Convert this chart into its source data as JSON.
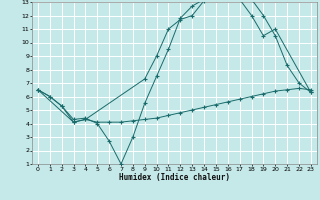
{
  "xlabel": "Humidex (Indice chaleur)",
  "xlim": [
    -0.5,
    23.5
  ],
  "ylim": [
    1,
    13
  ],
  "xticks": [
    0,
    1,
    2,
    3,
    4,
    5,
    6,
    7,
    8,
    9,
    10,
    11,
    12,
    13,
    14,
    15,
    16,
    17,
    18,
    19,
    20,
    21,
    22,
    23
  ],
  "yticks": [
    1,
    2,
    3,
    4,
    5,
    6,
    7,
    8,
    9,
    10,
    11,
    12,
    13
  ],
  "bg_color": "#c5e8e8",
  "grid_color": "#ffffff",
  "line_color": "#1a6b6b",
  "line1_x": [
    0,
    1,
    2,
    3,
    4,
    5,
    6,
    7,
    8,
    9,
    10,
    11,
    12,
    13,
    14,
    15,
    16,
    17,
    18,
    19,
    20,
    21,
    22,
    23
  ],
  "line1_y": [
    6.5,
    6.0,
    5.3,
    4.3,
    4.4,
    4.0,
    2.7,
    1.0,
    3.0,
    5.5,
    7.5,
    9.5,
    11.8,
    12.7,
    13.2,
    13.3,
    13.3,
    13.2,
    13.2,
    12.0,
    10.5,
    8.3,
    7.0,
    6.3
  ],
  "line2_x": [
    0,
    1,
    2,
    3,
    4,
    5,
    6,
    7,
    8,
    9,
    10,
    11,
    12,
    13,
    14,
    15,
    16,
    17,
    18,
    19,
    20,
    21,
    22,
    23
  ],
  "line2_y": [
    6.5,
    6.0,
    5.3,
    4.1,
    4.3,
    4.1,
    4.1,
    4.1,
    4.2,
    4.3,
    4.4,
    4.6,
    4.8,
    5.0,
    5.2,
    5.4,
    5.6,
    5.8,
    6.0,
    6.2,
    6.4,
    6.5,
    6.6,
    6.5
  ],
  "line3_x": [
    0,
    3,
    4,
    9,
    10,
    11,
    12,
    13,
    14,
    15,
    16,
    17,
    18,
    19,
    20,
    23
  ],
  "line3_y": [
    6.5,
    4.1,
    4.3,
    7.3,
    9.0,
    11.0,
    11.7,
    12.0,
    13.1,
    13.3,
    13.3,
    13.2,
    12.0,
    10.5,
    11.0,
    6.3
  ]
}
